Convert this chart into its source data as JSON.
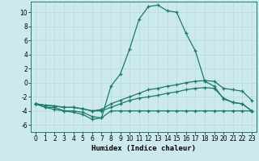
{
  "xlabel": "Humidex (Indice chaleur)",
  "ylabel": "",
  "xlim": [
    -0.5,
    23.5
  ],
  "ylim": [
    -7,
    11.5
  ],
  "bg_color": "#cce9ee",
  "grid_color": "#b8d8de",
  "line_color": "#1a7a6e",
  "series": [
    {
      "x": [
        0,
        1,
        2,
        3,
        4,
        5,
        6,
        7,
        8,
        9,
        10,
        11,
        12,
        13,
        14,
        15,
        16,
        17,
        18,
        19,
        20,
        21,
        22,
        23
      ],
      "y": [
        -3,
        -3.5,
        -3.5,
        -4,
        -4.2,
        -4.5,
        -5.2,
        -5.0,
        -0.5,
        1.2,
        4.8,
        9.0,
        10.8,
        11.0,
        10.2,
        10.0,
        7.0,
        4.5,
        0.2,
        -0.5,
        -2.3,
        -2.8,
        -3.0,
        -4.0
      ]
    },
    {
      "x": [
        0,
        1,
        2,
        3,
        4,
        5,
        6,
        7,
        8,
        9,
        10,
        11,
        12,
        13,
        14,
        15,
        16,
        17,
        18,
        19,
        20,
        21,
        22,
        23
      ],
      "y": [
        -3,
        -3.5,
        -3.8,
        -4.0,
        -4.0,
        -4.2,
        -4.8,
        -5.0,
        -4.0,
        -4.0,
        -4.0,
        -4.0,
        -4.0,
        -4.0,
        -4.0,
        -4.0,
        -4.0,
        -4.0,
        -4.0,
        -4.0,
        -4.0,
        -4.0,
        -4.0,
        -4.0
      ]
    },
    {
      "x": [
        0,
        1,
        2,
        3,
        4,
        5,
        6,
        7,
        8,
        9,
        10,
        11,
        12,
        13,
        14,
        15,
        16,
        17,
        18,
        19,
        20,
        21,
        22,
        23
      ],
      "y": [
        -3,
        -3.2,
        -3.3,
        -3.5,
        -3.5,
        -3.7,
        -4.0,
        -4.0,
        -3.5,
        -3.0,
        -2.5,
        -2.2,
        -2.0,
        -1.8,
        -1.5,
        -1.3,
        -1.0,
        -0.8,
        -0.7,
        -0.8,
        -2.2,
        -2.8,
        -3.0,
        -4.0
      ]
    },
    {
      "x": [
        0,
        1,
        2,
        3,
        4,
        5,
        6,
        7,
        8,
        9,
        10,
        11,
        12,
        13,
        14,
        15,
        16,
        17,
        18,
        19,
        20,
        21,
        22,
        23
      ],
      "y": [
        -3,
        -3.2,
        -3.3,
        -3.5,
        -3.5,
        -3.7,
        -4.0,
        -3.8,
        -3.0,
        -2.5,
        -2.0,
        -1.5,
        -1.0,
        -0.8,
        -0.5,
        -0.3,
        0.0,
        0.2,
        0.3,
        0.2,
        -0.8,
        -1.0,
        -1.2,
        -2.5
      ]
    }
  ],
  "xticks": [
    0,
    1,
    2,
    3,
    4,
    5,
    6,
    7,
    8,
    9,
    10,
    11,
    12,
    13,
    14,
    15,
    16,
    17,
    18,
    19,
    20,
    21,
    22,
    23
  ],
  "yticks": [
    -6,
    -4,
    -2,
    0,
    2,
    4,
    6,
    8,
    10
  ],
  "tick_fontsize": 5.5,
  "label_fontsize": 6.5,
  "linewidth": 0.9,
  "markersize": 2.5
}
